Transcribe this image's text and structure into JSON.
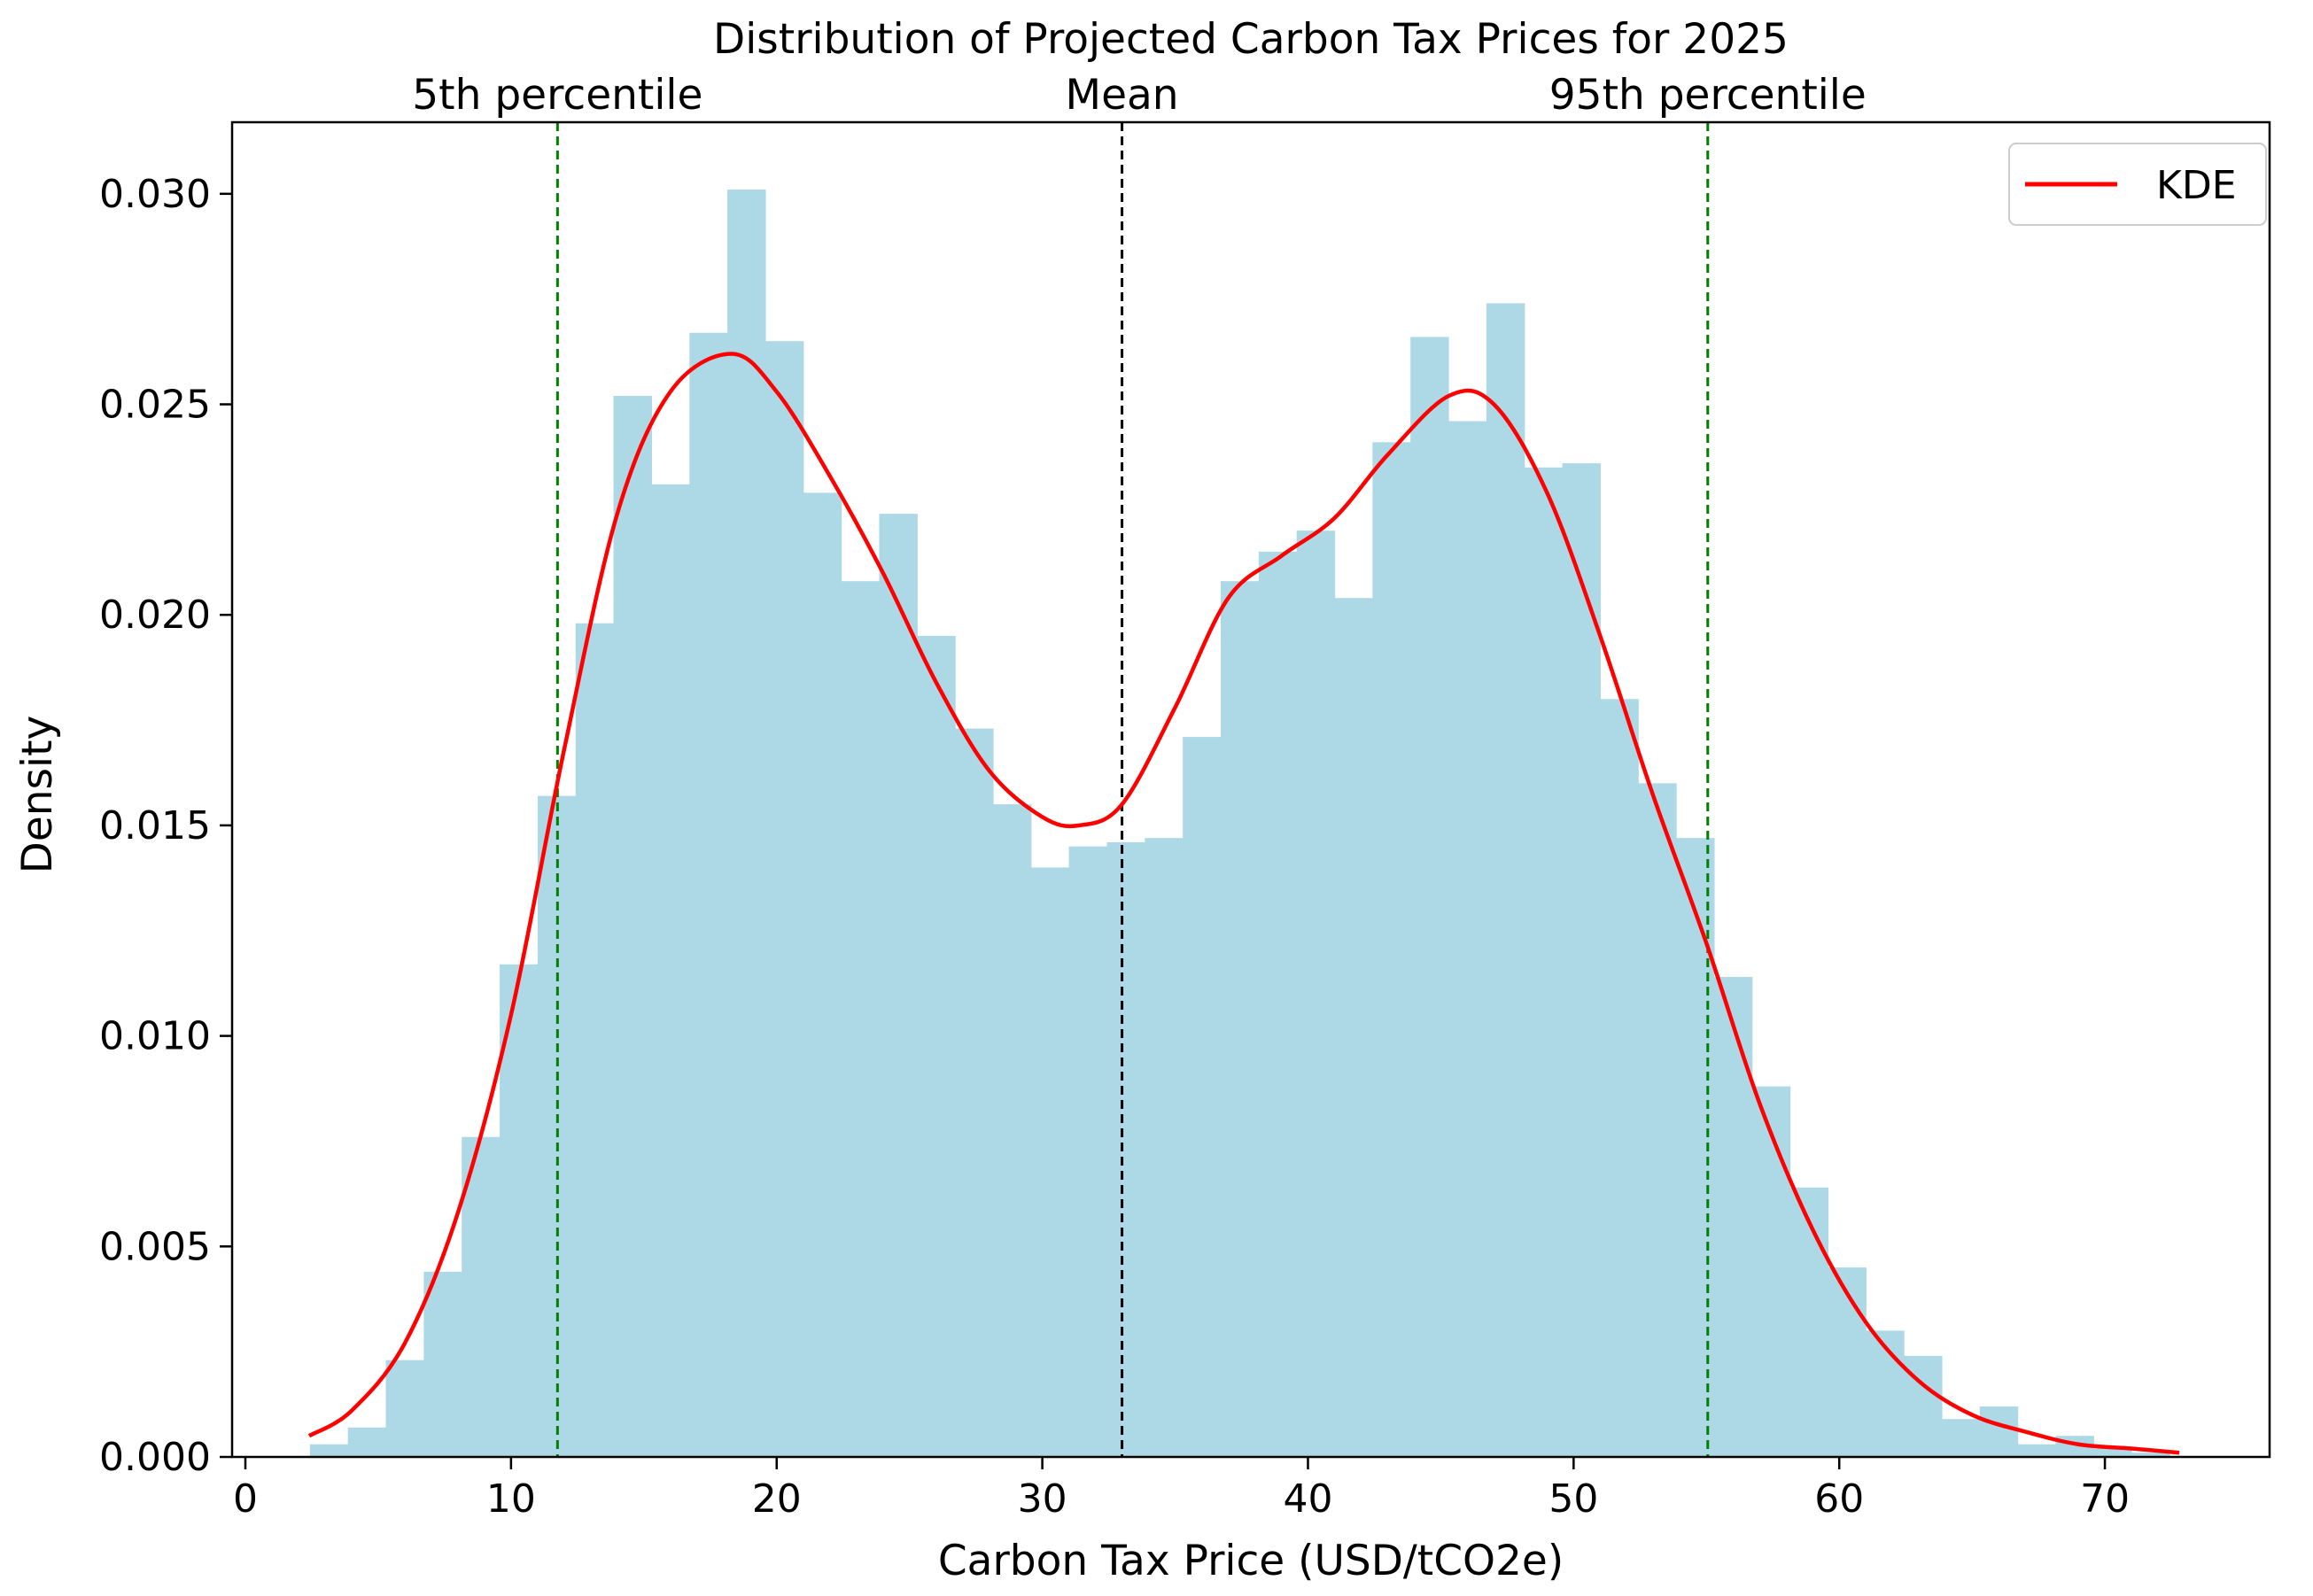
{
  "chart_data": {
    "type": "histogram",
    "title": "Distribution of Projected Carbon Tax Prices for 2025",
    "xlabel": "Carbon Tax Price (USD/tCO2e)",
    "ylabel": "Density",
    "xlim": [
      -0.5,
      76.2
    ],
    "ylim": [
      0,
      0.0317
    ],
    "x_ticks": [
      0,
      10,
      20,
      30,
      40,
      50,
      60,
      70
    ],
    "x_tick_labels": [
      "0",
      "10",
      "20",
      "30",
      "40",
      "50",
      "60",
      "70"
    ],
    "y_ticks": [
      0.0,
      0.005,
      0.01,
      0.015,
      0.02,
      0.025,
      0.03
    ],
    "y_tick_labels": [
      "0.000",
      "0.005",
      "0.010",
      "0.015",
      "0.020",
      "0.025",
      "0.030"
    ],
    "histogram": {
      "color": "#add8e6",
      "bin_start": 2.43,
      "bin_width": 1.4286,
      "densities": [
        0.0003,
        0.0007,
        0.0023,
        0.0044,
        0.0076,
        0.0117,
        0.0157,
        0.0198,
        0.0252,
        0.0231,
        0.0267,
        0.0301,
        0.0265,
        0.0229,
        0.0208,
        0.0224,
        0.0195,
        0.0173,
        0.0155,
        0.014,
        0.0145,
        0.0146,
        0.0147,
        0.0171,
        0.0208,
        0.0215,
        0.022,
        0.0204,
        0.0241,
        0.0266,
        0.0246,
        0.0274,
        0.0235,
        0.0236,
        0.018,
        0.016,
        0.0147,
        0.0114,
        0.0088,
        0.0064,
        0.0045,
        0.003,
        0.0024,
        0.0009,
        0.0012,
        0.0003,
        0.0005,
        0.0002,
        0.0001
      ]
    },
    "kde": {
      "label": "KDE",
      "color": "#ff0000",
      "x": [
        2.4,
        4,
        6,
        8,
        10,
        12,
        14,
        16,
        18.3,
        20,
        22,
        24,
        26,
        28,
        30,
        31.4,
        33,
        35,
        37,
        39,
        41,
        43,
        45.3,
        47,
        49,
        51,
        53,
        55,
        57,
        59,
        61,
        63,
        65,
        67,
        69,
        71,
        72.8
      ],
      "y": [
        0.0005,
        0.0011,
        0.0027,
        0.0058,
        0.0105,
        0.0168,
        0.0224,
        0.0253,
        0.0262,
        0.0253,
        0.0233,
        0.021,
        0.0184,
        0.0163,
        0.0152,
        0.015,
        0.0155,
        0.0178,
        0.0204,
        0.0214,
        0.0223,
        0.0238,
        0.0252,
        0.025,
        0.0229,
        0.0195,
        0.0157,
        0.0122,
        0.0084,
        0.0054,
        0.0032,
        0.0018,
        0.001,
        0.0006,
        0.0003,
        0.0002,
        0.0001
      ]
    },
    "vertical_lines": [
      {
        "label": "5th percentile",
        "x": 11.75,
        "color": "#008000"
      },
      {
        "label": "Mean",
        "x": 33.0,
        "color": "#000000"
      },
      {
        "label": "95th percentile",
        "x": 55.05,
        "color": "#008000"
      }
    ],
    "legend": {
      "position": "top-right",
      "entries": [
        "KDE"
      ]
    }
  }
}
